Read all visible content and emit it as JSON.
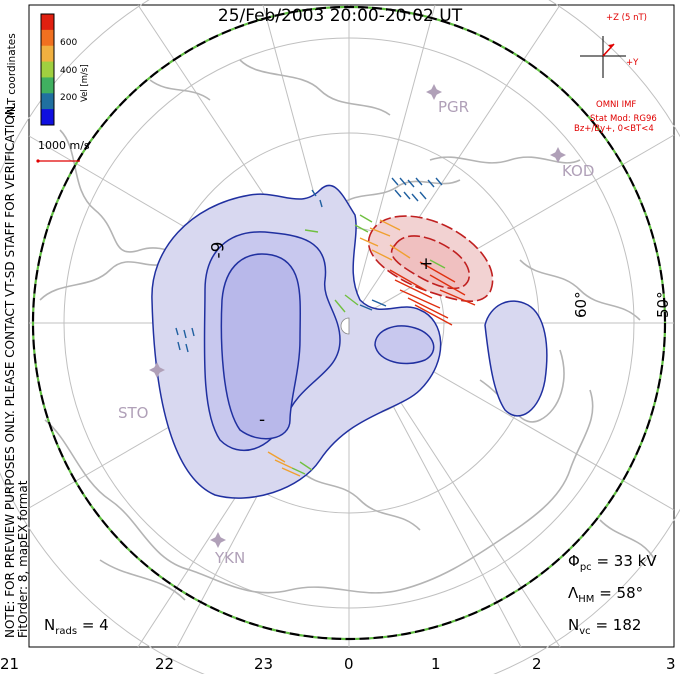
{
  "title": "25/Feb/2003 20:00-20:02 UT",
  "colorbar": {
    "label": "Vel [m/s]",
    "ticks": [
      "600",
      "400",
      "200"
    ],
    "colors": [
      "#e02010",
      "#f07020",
      "#f0b040",
      "#a0d040",
      "#40b060",
      "#2070a0",
      "#1010e0"
    ]
  },
  "coordinate_label": "MLT coordinates",
  "scale_vector_label": "1000 m/s",
  "notice": "NOTE: FOR PREVIEW PURPOSES ONLY. PLEASE CONTACT VT-SD STAFF FOR VERIFICATION.",
  "fit_info": "FitOrder: 8, mapEX format",
  "imf": {
    "z_label": "+Z (5 nT)",
    "y_label": "+Y",
    "source": "OMNI IMF",
    "model": "Stat Mod: RG96",
    "condition": "Bz+/By+, 0<BT<4"
  },
  "stations": [
    "PGR",
    "KOD",
    "STO",
    "YKN"
  ],
  "latitude_labels": [
    "60°",
    "50°"
  ],
  "contour_labels": [
    "-9",
    "+",
    "-"
  ],
  "stats": {
    "phi_pc": {
      "symbol": "Φ",
      "sub": "pc",
      "value": "= 33 kV"
    },
    "lambda_hm": {
      "symbol": "Λ",
      "sub": "HM",
      "value": "= 58°"
    },
    "n_vc": {
      "symbol": "N",
      "sub": "vc",
      "value": "= 182"
    },
    "n_rads": {
      "symbol": "N",
      "sub": "rads",
      "value": "= 4"
    }
  },
  "mlt_ticks": [
    "21",
    "22",
    "23",
    "0",
    "1",
    "2",
    "3"
  ],
  "colors": {
    "negative_cell": "#c8c8f0",
    "positive_cell": "#f0c8c8",
    "contour_negative": "#2030a0",
    "contour_positive": "#c02020",
    "boundary_dash": "#60c040",
    "map_gray": "#b4b4b4"
  }
}
